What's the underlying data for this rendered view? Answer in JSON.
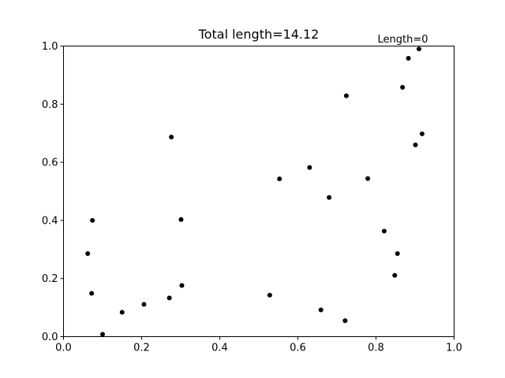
{
  "chart_data": {
    "type": "scatter",
    "title": "Total length=14.12",
    "annotation": "Length=0",
    "xlabel": "",
    "ylabel": "",
    "xlim": [
      0,
      1
    ],
    "ylim": [
      0,
      1
    ],
    "grid": false,
    "x_ticks": [
      "0.0",
      "0.2",
      "0.4",
      "0.6",
      "0.8",
      "1.0"
    ],
    "y_ticks": [
      "0.0",
      "0.2",
      "0.4",
      "0.6",
      "0.8",
      "1.0"
    ],
    "marker_color": "#000000",
    "points": [
      {
        "x": 0.91,
        "y": 0.99
      },
      {
        "x": 0.883,
        "y": 0.958
      },
      {
        "x": 0.868,
        "y": 0.858
      },
      {
        "x": 0.724,
        "y": 0.829
      },
      {
        "x": 0.276,
        "y": 0.687
      },
      {
        "x": 0.918,
        "y": 0.698
      },
      {
        "x": 0.901,
        "y": 0.66
      },
      {
        "x": 0.63,
        "y": 0.582
      },
      {
        "x": 0.553,
        "y": 0.543
      },
      {
        "x": 0.779,
        "y": 0.544
      },
      {
        "x": 0.68,
        "y": 0.479
      },
      {
        "x": 0.074,
        "y": 0.4
      },
      {
        "x": 0.301,
        "y": 0.403
      },
      {
        "x": 0.821,
        "y": 0.363
      },
      {
        "x": 0.062,
        "y": 0.286
      },
      {
        "x": 0.855,
        "y": 0.286
      },
      {
        "x": 0.848,
        "y": 0.211
      },
      {
        "x": 0.303,
        "y": 0.176
      },
      {
        "x": 0.072,
        "y": 0.149
      },
      {
        "x": 0.528,
        "y": 0.143
      },
      {
        "x": 0.271,
        "y": 0.133
      },
      {
        "x": 0.206,
        "y": 0.111
      },
      {
        "x": 0.659,
        "y": 0.092
      },
      {
        "x": 0.15,
        "y": 0.084
      },
      {
        "x": 0.721,
        "y": 0.055
      },
      {
        "x": 0.1,
        "y": 0.008
      }
    ]
  }
}
